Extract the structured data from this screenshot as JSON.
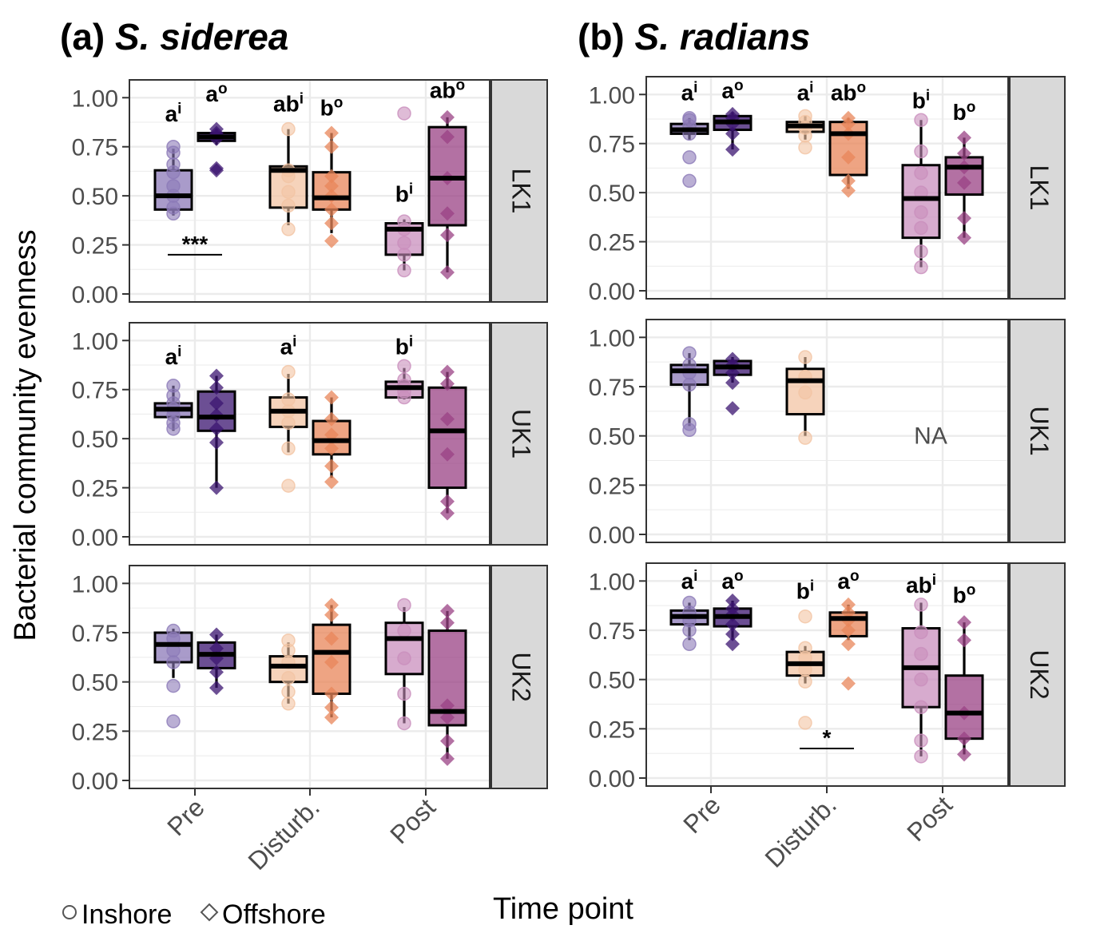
{
  "figure": {
    "ylabel": "Bacterial community evenness",
    "xlabel": "Time point",
    "legend": [
      {
        "label": "Inshore",
        "shape": "circle-icon"
      },
      {
        "label": "Offshore",
        "shape": "diamond-icon"
      }
    ],
    "colors": {
      "Pre": {
        "Inshore": "#8c7ab8",
        "Offshore": "#3b1470"
      },
      "Disturb.": {
        "Inshore": "#f3c4a4",
        "Offshore": "#e8865a"
      },
      "Post": {
        "Inshore": "#c98fbd",
        "Offshore": "#9a4184"
      },
      "strip_bg": "#d9d9d9",
      "grid": "#ebebeb",
      "axis_text": "#4d4d4d"
    }
  },
  "chart_data": [
    {
      "panel_label": "(a)",
      "species": "S. siderea",
      "type": "box",
      "categories": [
        "Pre",
        "Disturb.",
        "Post"
      ],
      "groups": [
        "Inshore",
        "Offshore"
      ],
      "yticks": [
        "0.00",
        "0.25",
        "0.50",
        "0.75",
        "1.00"
      ],
      "ylim": [
        0,
        1.05
      ],
      "grid": true,
      "facets": [
        {
          "label": "LK1",
          "na": "",
          "boxes": [
            {
              "cat": "Pre",
              "group": "Inshore",
              "q1": 0.43,
              "med": 0.5,
              "q3": 0.63,
              "lo": 0.4,
              "hi": 0.74,
              "points": [
                0.41,
                0.44,
                0.5,
                0.55,
                0.62,
                0.66,
                0.72,
                0.75
              ]
            },
            {
              "cat": "Pre",
              "group": "Offshore",
              "q1": 0.78,
              "med": 0.8,
              "q3": 0.82,
              "lo": 0.76,
              "hi": 0.84,
              "points": [
                0.63,
                0.64,
                0.79,
                0.81,
                0.82,
                0.84
              ]
            },
            {
              "cat": "Disturb.",
              "group": "Inshore",
              "q1": 0.44,
              "med": 0.63,
              "q3": 0.65,
              "lo": 0.35,
              "hi": 0.84,
              "points": [
                0.33,
                0.45,
                0.52,
                0.6,
                0.63,
                0.84
              ]
            },
            {
              "cat": "Disturb.",
              "group": "Offshore",
              "q1": 0.43,
              "med": 0.49,
              "q3": 0.62,
              "lo": 0.31,
              "hi": 0.82,
              "points": [
                0.27,
                0.36,
                0.43,
                0.5,
                0.55,
                0.6,
                0.75,
                0.82
              ]
            },
            {
              "cat": "Post",
              "group": "Inshore",
              "q1": 0.2,
              "med": 0.33,
              "q3": 0.36,
              "lo": 0.12,
              "hi": 0.38,
              "points": [
                0.12,
                0.2,
                0.26,
                0.33,
                0.37,
                0.92
              ]
            },
            {
              "cat": "Post",
              "group": "Offshore",
              "q1": 0.35,
              "med": 0.59,
              "q3": 0.85,
              "lo": 0.11,
              "hi": 0.9,
              "points": [
                0.11,
                0.3,
                0.41,
                0.59,
                0.8,
                0.9
              ]
            }
          ],
          "letters": [
            {
              "cat": "Pre",
              "group": "Inshore",
              "base": "a",
              "sup": "i",
              "y": 0.88
            },
            {
              "cat": "Pre",
              "group": "Offshore",
              "base": "a",
              "sup": "o",
              "y": 0.98
            },
            {
              "cat": "Disturb.",
              "group": "Inshore",
              "base": "ab",
              "sup": "i",
              "y": 0.93
            },
            {
              "cat": "Disturb.",
              "group": "Offshore",
              "base": "b",
              "sup": "o",
              "y": 0.91
            },
            {
              "cat": "Post",
              "group": "Inshore",
              "base": "b",
              "sup": "i",
              "y": 0.47
            },
            {
              "cat": "Post",
              "group": "Offshore",
              "base": "ab",
              "sup": "o",
              "y": 1.0
            }
          ],
          "sig": {
            "cat": "Pre",
            "label": "***",
            "y": 0.2
          }
        },
        {
          "label": "UK1",
          "na": "",
          "boxes": [
            {
              "cat": "Pre",
              "group": "Inshore",
              "q1": 0.61,
              "med": 0.65,
              "q3": 0.68,
              "lo": 0.54,
              "hi": 0.77,
              "points": [
                0.55,
                0.58,
                0.62,
                0.65,
                0.68,
                0.72,
                0.77
              ]
            },
            {
              "cat": "Pre",
              "group": "Offshore",
              "q1": 0.54,
              "med": 0.61,
              "q3": 0.74,
              "lo": 0.25,
              "hi": 0.82,
              "points": [
                0.25,
                0.48,
                0.55,
                0.62,
                0.68,
                0.76,
                0.82
              ]
            },
            {
              "cat": "Disturb.",
              "group": "Inshore",
              "q1": 0.56,
              "med": 0.64,
              "q3": 0.71,
              "lo": 0.43,
              "hi": 0.83,
              "points": [
                0.26,
                0.45,
                0.58,
                0.64,
                0.7,
                0.84
              ]
            },
            {
              "cat": "Disturb.",
              "group": "Offshore",
              "q1": 0.42,
              "med": 0.49,
              "q3": 0.59,
              "lo": 0.3,
              "hi": 0.71,
              "points": [
                0.28,
                0.36,
                0.45,
                0.52,
                0.6,
                0.71
              ]
            },
            {
              "cat": "Post",
              "group": "Inshore",
              "q1": 0.71,
              "med": 0.76,
              "q3": 0.79,
              "lo": 0.7,
              "hi": 0.86,
              "points": [
                0.71,
                0.74,
                0.77,
                0.8,
                0.87
              ]
            },
            {
              "cat": "Post",
              "group": "Offshore",
              "q1": 0.25,
              "med": 0.54,
              "q3": 0.76,
              "lo": 0.12,
              "hi": 0.84,
              "points": [
                0.12,
                0.18,
                0.42,
                0.6,
                0.78,
                0.84
              ]
            }
          ],
          "letters": [
            {
              "cat": "Pre",
              "group": "Inshore",
              "base": "a",
              "sup": "i",
              "y": 0.88
            },
            {
              "cat": "Disturb.",
              "group": "Inshore",
              "base": "a",
              "sup": "i",
              "y": 0.93
            },
            {
              "cat": "Post",
              "group": "Inshore",
              "base": "b",
              "sup": "i",
              "y": 0.93
            }
          ]
        },
        {
          "label": "UK2",
          "na": "",
          "boxes": [
            {
              "cat": "Pre",
              "group": "Inshore",
              "q1": 0.6,
              "med": 0.69,
              "q3": 0.75,
              "lo": 0.52,
              "hi": 0.77,
              "points": [
                0.3,
                0.48,
                0.6,
                0.66,
                0.72,
                0.76
              ]
            },
            {
              "cat": "Pre",
              "group": "Offshore",
              "q1": 0.57,
              "med": 0.64,
              "q3": 0.7,
              "lo": 0.47,
              "hi": 0.74,
              "points": [
                0.47,
                0.55,
                0.62,
                0.67,
                0.74
              ]
            },
            {
              "cat": "Disturb.",
              "group": "Inshore",
              "q1": 0.5,
              "med": 0.58,
              "q3": 0.63,
              "lo": 0.39,
              "hi": 0.7,
              "points": [
                0.39,
                0.45,
                0.52,
                0.6,
                0.66,
                0.71
              ]
            },
            {
              "cat": "Disturb.",
              "group": "Offshore",
              "q1": 0.44,
              "med": 0.65,
              "q3": 0.79,
              "lo": 0.32,
              "hi": 0.89,
              "points": [
                0.32,
                0.37,
                0.44,
                0.6,
                0.72,
                0.84,
                0.89
              ]
            },
            {
              "cat": "Post",
              "group": "Inshore",
              "q1": 0.54,
              "med": 0.72,
              "q3": 0.8,
              "lo": 0.29,
              "hi": 0.88,
              "points": [
                0.29,
                0.44,
                0.62,
                0.76,
                0.89
              ]
            },
            {
              "cat": "Post",
              "group": "Offshore",
              "q1": 0.28,
              "med": 0.35,
              "q3": 0.76,
              "lo": 0.11,
              "hi": 0.86,
              "points": [
                0.11,
                0.2,
                0.32,
                0.38,
                0.8,
                0.86
              ]
            }
          ],
          "letters": []
        }
      ]
    },
    {
      "panel_label": "(b)",
      "species": "S. radians",
      "type": "box",
      "categories": [
        "Pre",
        "Disturb.",
        "Post"
      ],
      "groups": [
        "Inshore",
        "Offshore"
      ],
      "yticks": [
        "0.00",
        "0.25",
        "0.50",
        "0.75",
        "1.00"
      ],
      "ylim": [
        0,
        1.05
      ],
      "grid": true,
      "facets": [
        {
          "label": "LK1",
          "na": "",
          "boxes": [
            {
              "cat": "Pre",
              "group": "Inshore",
              "q1": 0.8,
              "med": 0.82,
              "q3": 0.85,
              "lo": 0.77,
              "hi": 0.88,
              "points": [
                0.56,
                0.68,
                0.8,
                0.84,
                0.87,
                0.88
              ]
            },
            {
              "cat": "Pre",
              "group": "Offshore",
              "q1": 0.82,
              "med": 0.86,
              "q3": 0.89,
              "lo": 0.72,
              "hi": 0.91,
              "points": [
                0.72,
                0.8,
                0.85,
                0.88,
                0.9
              ]
            },
            {
              "cat": "Disturb.",
              "group": "Inshore",
              "q1": 0.81,
              "med": 0.84,
              "q3": 0.86,
              "lo": 0.77,
              "hi": 0.89,
              "points": [
                0.73,
                0.79,
                0.83,
                0.86,
                0.89
              ]
            },
            {
              "cat": "Disturb.",
              "group": "Offshore",
              "q1": 0.59,
              "med": 0.8,
              "q3": 0.86,
              "lo": 0.52,
              "hi": 0.88,
              "points": [
                0.51,
                0.56,
                0.68,
                0.8,
                0.85,
                0.88
              ]
            },
            {
              "cat": "Post",
              "group": "Inshore",
              "q1": 0.27,
              "med": 0.47,
              "q3": 0.64,
              "lo": 0.12,
              "hi": 0.87,
              "points": [
                0.12,
                0.2,
                0.32,
                0.4,
                0.5,
                0.6,
                0.71,
                0.87
              ]
            },
            {
              "cat": "Post",
              "group": "Offshore",
              "q1": 0.49,
              "med": 0.63,
              "q3": 0.68,
              "lo": 0.27,
              "hi": 0.78,
              "points": [
                0.27,
                0.37,
                0.55,
                0.63,
                0.7,
                0.78
              ]
            }
          ],
          "letters": [
            {
              "cat": "Pre",
              "group": "Inshore",
              "base": "a",
              "sup": "i",
              "y": 0.97
            },
            {
              "cat": "Pre",
              "group": "Offshore",
              "base": "a",
              "sup": "o",
              "y": 0.98
            },
            {
              "cat": "Disturb.",
              "group": "Inshore",
              "base": "a",
              "sup": "i",
              "y": 0.97
            },
            {
              "cat": "Disturb.",
              "group": "Offshore",
              "base": "ab",
              "sup": "o",
              "y": 0.97
            },
            {
              "cat": "Post",
              "group": "Inshore",
              "base": "b",
              "sup": "i",
              "y": 0.93
            },
            {
              "cat": "Post",
              "group": "Offshore",
              "base": "b",
              "sup": "o",
              "y": 0.87
            }
          ]
        },
        {
          "label": "UK1",
          "na": "NA",
          "boxes": [
            {
              "cat": "Pre",
              "group": "Inshore",
              "q1": 0.76,
              "med": 0.83,
              "q3": 0.86,
              "lo": 0.55,
              "hi": 0.92,
              "points": [
                0.53,
                0.56,
                0.76,
                0.82,
                0.86,
                0.92
              ]
            },
            {
              "cat": "Pre",
              "group": "Offshore",
              "q1": 0.81,
              "med": 0.85,
              "q3": 0.88,
              "lo": 0.77,
              "hi": 0.9,
              "points": [
                0.64,
                0.77,
                0.82,
                0.86,
                0.89
              ]
            },
            {
              "cat": "Disturb.",
              "group": "Inshore",
              "q1": 0.61,
              "med": 0.78,
              "q3": 0.84,
              "lo": 0.5,
              "hi": 0.9,
              "points": [
                0.49,
                0.72,
                0.8,
                0.9
              ]
            }
          ],
          "letters": []
        },
        {
          "label": "UK2",
          "na": "",
          "boxes": [
            {
              "cat": "Pre",
              "group": "Inshore",
              "q1": 0.78,
              "med": 0.82,
              "q3": 0.85,
              "lo": 0.7,
              "hi": 0.89,
              "points": [
                0.68,
                0.75,
                0.8,
                0.84,
                0.89
              ]
            },
            {
              "cat": "Pre",
              "group": "Offshore",
              "q1": 0.77,
              "med": 0.82,
              "q3": 0.86,
              "lo": 0.7,
              "hi": 0.9,
              "points": [
                0.68,
                0.73,
                0.78,
                0.83,
                0.86,
                0.9
              ]
            },
            {
              "cat": "Disturb.",
              "group": "Inshore",
              "q1": 0.52,
              "med": 0.58,
              "q3": 0.64,
              "lo": 0.48,
              "hi": 0.67,
              "points": [
                0.28,
                0.49,
                0.55,
                0.61,
                0.66,
                0.82
              ]
            },
            {
              "cat": "Disturb.",
              "group": "Offshore",
              "q1": 0.72,
              "med": 0.81,
              "q3": 0.84,
              "lo": 0.7,
              "hi": 0.88,
              "points": [
                0.48,
                0.68,
                0.75,
                0.8,
                0.84,
                0.88
              ]
            },
            {
              "cat": "Post",
              "group": "Inshore",
              "q1": 0.36,
              "med": 0.56,
              "q3": 0.76,
              "lo": 0.11,
              "hi": 0.89,
              "points": [
                0.11,
                0.19,
                0.36,
                0.5,
                0.63,
                0.74,
                0.88
              ]
            },
            {
              "cat": "Post",
              "group": "Offshore",
              "q1": 0.2,
              "med": 0.33,
              "q3": 0.52,
              "lo": 0.12,
              "hi": 0.79,
              "points": [
                0.12,
                0.2,
                0.33,
                0.7,
                0.79
              ]
            }
          ],
          "letters": [
            {
              "cat": "Pre",
              "group": "Inshore",
              "base": "a",
              "sup": "i",
              "y": 0.96
            },
            {
              "cat": "Pre",
              "group": "Offshore",
              "base": "a",
              "sup": "o",
              "y": 0.96
            },
            {
              "cat": "Disturb.",
              "group": "Inshore",
              "base": "b",
              "sup": "i",
              "y": 0.91
            },
            {
              "cat": "Disturb.",
              "group": "Offshore",
              "base": "a",
              "sup": "o",
              "y": 0.96
            },
            {
              "cat": "Post",
              "group": "Inshore",
              "base": "ab",
              "sup": "i",
              "y": 0.94
            },
            {
              "cat": "Post",
              "group": "Offshore",
              "base": "b",
              "sup": "o",
              "y": 0.89
            }
          ],
          "sig": {
            "cat": "Disturb.",
            "label": "*",
            "y": 0.15
          }
        }
      ]
    }
  ]
}
